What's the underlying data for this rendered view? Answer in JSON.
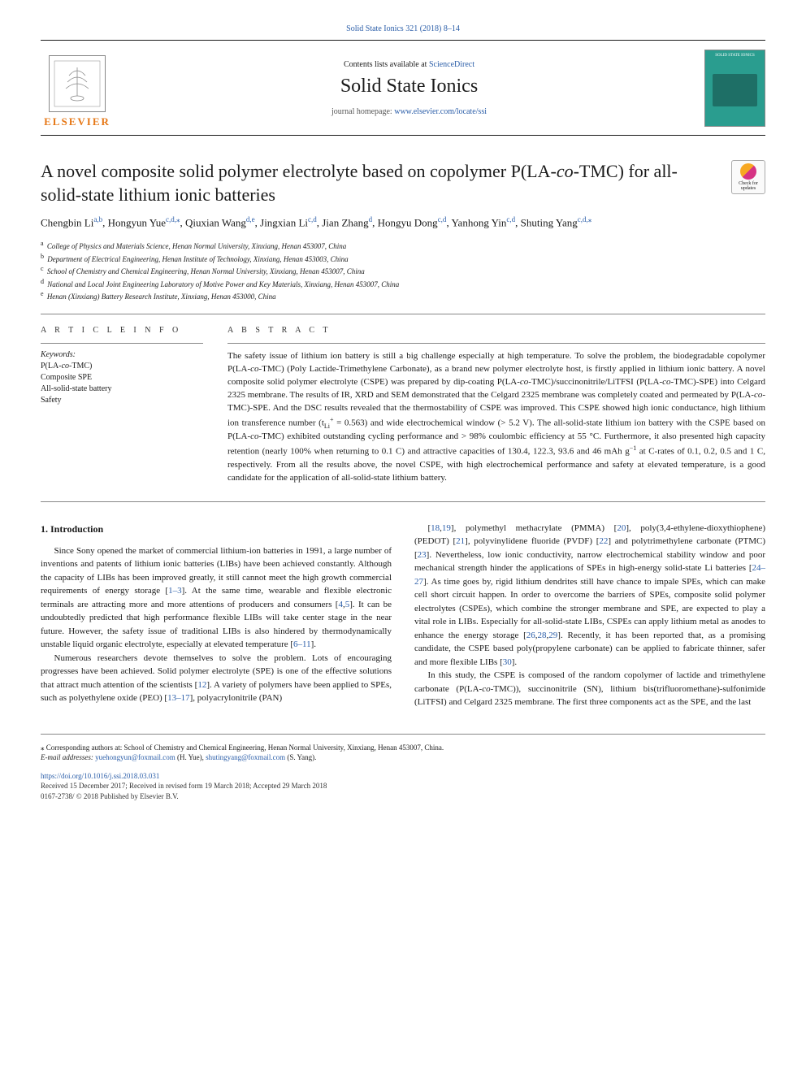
{
  "journal_ref": {
    "text": "Solid State Ionics 321 (2018) 8–14",
    "link_color": "#2a5da8"
  },
  "header": {
    "contents_prefix": "Contents lists available at ",
    "contents_link": "ScienceDirect",
    "journal_name": "Solid State Ionics",
    "homepage_prefix": "journal homepage: ",
    "homepage_link": "www.elsevier.com/locate/ssi",
    "publisher_name": "ELSEVIER",
    "cover_label": "SOLID STATE IONICS"
  },
  "title": {
    "pre": "A novel composite solid polymer electrolyte based on copolymer P(LA-",
    "ital": "co",
    "post": "-TMC) for all-solid-state lithium ionic batteries"
  },
  "check_badge": "Check for updates",
  "authors": [
    {
      "name": "Chengbin Li",
      "aff": "a,b"
    },
    {
      "name": "Hongyun Yue",
      "aff": "c,d,",
      "corr": true
    },
    {
      "name": "Qiuxian Wang",
      "aff": "d,e"
    },
    {
      "name": "Jingxian Li",
      "aff": "c,d"
    },
    {
      "name": "Jian Zhang",
      "aff": "d"
    },
    {
      "name": "Hongyu Dong",
      "aff": "c,d"
    },
    {
      "name": "Yanhong Yin",
      "aff": "c,d"
    },
    {
      "name": "Shuting Yang",
      "aff": "c,d,",
      "corr": true
    }
  ],
  "affiliations": [
    {
      "key": "a",
      "text": "College of Physics and Materials Science, Henan Normal University, Xinxiang, Henan 453007, China"
    },
    {
      "key": "b",
      "text": "Department of Electrical Engineering, Henan Institute of Technology, Xinxiang, Henan 453003, China"
    },
    {
      "key": "c",
      "text": "School of Chemistry and Chemical Engineering, Henan Normal University, Xinxiang, Henan 453007, China"
    },
    {
      "key": "d",
      "text": "National and Local Joint Engineering Laboratory of Motive Power and Key Materials, Xinxiang, Henan 453007, China"
    },
    {
      "key": "e",
      "text": "Henan (Xinxiang) Battery Research Institute, Xinxiang, Henan 453000, China"
    }
  ],
  "article_info_label": "A R T I C L E  I N F O",
  "abstract_label": "A B S T R A C T",
  "keywords_label": "Keywords:",
  "keywords": [
    "P(LA-<em>co</em>-TMC)",
    "Composite SPE",
    "All-solid-state battery",
    "Safety"
  ],
  "abstract_html": "The safety issue of lithium ion battery is still a big challenge especially at high temperature. To solve the problem, the biodegradable copolymer P(LA-<em>co</em>-TMC) (Poly Lactide-Trimethylene Carbonate), as a brand new polymer electrolyte host, is firstly applied in lithium ionic battery. A novel composite solid polymer electrolyte (CSPE) was prepared by dip-coating P(LA-<em>co</em>-TMC)/succinonitrile/LiTFSI (P(LA-<em>co</em>-TMC)-SPE) into Celgard 2325 membrane. The results of IR, XRD and SEM demonstrated that the Celgard 2325 membrane was completely coated and permeated by P(LA-<em>co</em>-TMC)-SPE. And the DSC results revealed that the thermostability of CSPE was improved. This CSPE showed high ionic conductance, high lithium ion transference number (t<sub>Li</sub><sup>+</sup> = 0.563) and wide electrochemical window (&gt; 5.2 V). The all-solid-state lithium ion battery with the CSPE based on P(LA-<em>co</em>-TMC) exhibited outstanding cycling performance and &gt; 98% coulombic efficiency at 55 °C. Furthermore, it also presented high capacity retention (nearly 100% when returning to 0.1 C) and attractive capacities of 130.4, 122.3, 93.6 and 46 mAh g<sup>−1</sup> at C-rates of 0.1, 0.2, 0.5 and 1 C, respectively. From all the results above, the novel CSPE, with high electrochemical performance and safety at elevated temperature, is a good candidate for the application of all-solid-state lithium battery.",
  "intro_heading": "1. Introduction",
  "col1_paras": [
    "Since Sony opened the market of commercial lithium-ion batteries in 1991, a large number of inventions and patents of lithium ionic batteries (LIBs) have been achieved constantly. Although the capacity of LIBs has been improved greatly, it still cannot meet the high growth commercial requirements of energy storage [<a href='#'>1–3</a>]. At the same time, wearable and flexible electronic terminals are attracting more and more attentions of producers and consumers [<a href='#'>4</a>,<a href='#'>5</a>]. It can be undoubtedly predicted that high performance flexible LIBs will take center stage in the near future. However, the safety issue of traditional LIBs is also hindered by thermodynamically unstable liquid organic electrolyte, especially at elevated temperature [<a href='#'>6–11</a>].",
    "Numerous researchers devote themselves to solve the problem. Lots of encouraging progresses have been achieved. Solid polymer electrolyte (SPE) is one of the effective solutions that attract much attention of the scientists [<a href='#'>12</a>]. A variety of polymers have been applied to SPEs, such as polyethylene oxide (PEO) [<a href='#'>13–17</a>], polyacrylonitrile (PAN)"
  ],
  "col2_paras": [
    "[<a href='#'>18</a>,<a href='#'>19</a>], polymethyl methacrylate (PMMA) [<a href='#'>20</a>], poly(3,4-ethylene-dioxythiophene) (PEDOT) [<a href='#'>21</a>], polyvinylidene fluoride (PVDF) [<a href='#'>22</a>] and polytrimethylene carbonate (PTMC) [<a href='#'>23</a>]. Nevertheless, low ionic conductivity, narrow electrochemical stability window and poor mechanical strength hinder the applications of SPEs in high-energy solid-state Li batteries [<a href='#'>24–27</a>]. As time goes by, rigid lithium dendrites still have chance to impale SPEs, which can make cell short circuit happen. In order to overcome the barriers of SPEs, composite solid polymer electrolytes (CSPEs), which combine the stronger membrane and SPE, are expected to play a vital role in LIBs. Especially for all-solid-state LIBs, CSPEs can apply lithium metal as anodes to enhance the energy storage [<a href='#'>26</a>,<a href='#'>28</a>,<a href='#'>29</a>]. Recently, it has been reported that, as a promising candidate, the CSPE based poly(propylene carbonate) can be applied to fabricate thinner, safer and more flexible LIBs [<a href='#'>30</a>].",
    "In this study, the CSPE is composed of the random copolymer of lactide and trimethylene carbonate (P(LA-<em>co</em>-TMC)), succinonitrile (SN), lithium bis(trifluoromethane)-sulfonimide (LiTFSI) and Celgard 2325 membrane. The first three components act as the SPE, and the last"
  ],
  "footer": {
    "corr_note": "⁎ Corresponding authors at: School of Chemistry and Chemical Engineering, Henan Normal University, Xinxiang, Henan 453007, China.",
    "email_label": "E-mail addresses: ",
    "emails": [
      {
        "addr": "yuehongyun@foxmail.com",
        "who": " (H. Yue), "
      },
      {
        "addr": "shutingyang@foxmail.com",
        "who": " (S. Yang)."
      }
    ],
    "doi": "https://doi.org/10.1016/j.ssi.2018.03.031",
    "received": "Received 15 December 2017; Received in revised form 19 March 2018; Accepted 29 March 2018",
    "copyright": "0167-2738/ © 2018 Published by Elsevier B.V."
  },
  "colors": {
    "link": "#2a5da8",
    "elsevier_orange": "#e67817",
    "cover_bg": "#2a9d8f",
    "text": "#1a1a1a"
  }
}
